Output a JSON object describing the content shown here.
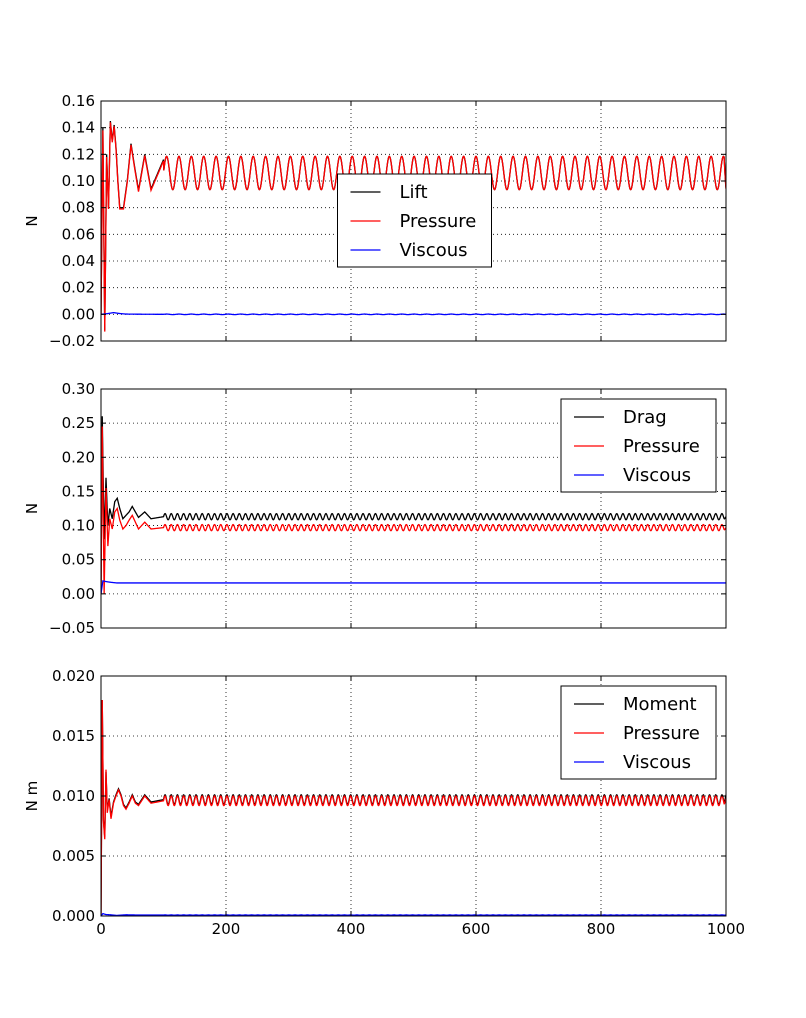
{
  "chart_data": [
    {
      "type": "line",
      "id": "lift",
      "title": "",
      "xlabel": "",
      "ylabel": "N",
      "xlim": [
        0,
        1000
      ],
      "ylim": [
        -0.02,
        0.16
      ],
      "xticks": [
        0,
        200,
        400,
        600,
        800,
        1000
      ],
      "yticks": [
        "−0.02",
        "0.00",
        "0.02",
        "0.04",
        "0.06",
        "0.08",
        "0.10",
        "0.12",
        "0.14",
        "0.16"
      ],
      "ytick_values": [
        -0.02,
        0.0,
        0.02,
        0.04,
        0.06,
        0.08,
        0.1,
        0.12,
        0.14,
        0.16
      ],
      "show_xtick_labels": false,
      "grid": true,
      "legend_position": "center",
      "legend_offset_from_top": 0.42,
      "series": [
        {
          "name": "Lift",
          "color": "#000000",
          "x": [
            0,
            3,
            6,
            9,
            12,
            15,
            18,
            21,
            24,
            27,
            30,
            36,
            42,
            48,
            54,
            60,
            70,
            80,
            100,
            150,
            200,
            300,
            400,
            500,
            600,
            700,
            800,
            900,
            1000
          ],
          "y": [
            0.0,
            0.14,
            -0.012,
            0.12,
            0.08,
            0.145,
            0.13,
            0.142,
            0.125,
            0.1,
            0.08,
            0.08,
            0.1,
            0.128,
            0.11,
            0.093,
            0.12,
            0.094,
            0.116,
            0.106,
            0.106,
            0.107,
            0.107,
            0.107,
            0.107,
            0.107,
            0.107,
            0.107,
            0.095
          ],
          "steady_mean": 0.106,
          "steady_amplitude": 0.0125,
          "period": 19.8
        },
        {
          "name": "Pressure",
          "color": "#ff0000",
          "x": [
            0,
            3,
            6,
            9,
            12,
            15,
            18,
            21,
            24,
            27,
            30,
            36,
            42,
            48,
            54,
            60,
            70,
            80,
            100,
            150,
            200,
            300,
            400,
            500,
            600,
            700,
            800,
            900,
            1000
          ],
          "y": [
            0.0,
            0.138,
            -0.013,
            0.118,
            0.079,
            0.144,
            0.129,
            0.141,
            0.124,
            0.099,
            0.079,
            0.079,
            0.099,
            0.127,
            0.109,
            0.092,
            0.119,
            0.093,
            0.115,
            0.105,
            0.105,
            0.106,
            0.106,
            0.106,
            0.106,
            0.106,
            0.106,
            0.106,
            0.094
          ],
          "steady_mean": 0.106,
          "steady_amplitude": 0.0125,
          "period": 19.8
        },
        {
          "name": "Viscous",
          "color": "#0000ff",
          "x": [
            0,
            10,
            20,
            30,
            40,
            60,
            100,
            200,
            400,
            600,
            800,
            1000
          ],
          "y": [
            0.0,
            0.0005,
            0.0013,
            0.0006,
            0.0002,
            0.0001,
            0.0,
            0.0,
            0.0,
            0.0,
            0.0,
            0.0
          ],
          "steady_mean": 0.0,
          "steady_amplitude": 0.0002,
          "period": 19.8
        }
      ]
    },
    {
      "type": "line",
      "id": "drag",
      "title": "",
      "xlabel": "",
      "ylabel": "N",
      "xlim": [
        0,
        1000
      ],
      "ylim": [
        -0.05,
        0.3
      ],
      "xticks": [
        0,
        200,
        400,
        600,
        800,
        1000
      ],
      "yticks": [
        "−0.05",
        "0.00",
        "0.05",
        "0.10",
        "0.15",
        "0.20",
        "0.25",
        "0.30"
      ],
      "ytick_values": [
        -0.05,
        0.0,
        0.05,
        0.1,
        0.15,
        0.2,
        0.25,
        0.3
      ],
      "show_xtick_labels": false,
      "grid": true,
      "legend_position": "upper right",
      "series": [
        {
          "name": "Drag",
          "color": "#000000",
          "x": [
            0,
            2,
            5,
            8,
            11,
            14,
            18,
            22,
            26,
            30,
            35,
            40,
            45,
            50,
            60,
            70,
            80,
            100,
            200,
            400,
            600,
            800,
            1000
          ],
          "y": [
            0.0,
            0.26,
            0.08,
            0.17,
            0.1,
            0.125,
            0.11,
            0.135,
            0.14,
            0.125,
            0.11,
            0.115,
            0.12,
            0.128,
            0.112,
            0.12,
            0.11,
            0.113,
            0.113,
            0.113,
            0.113,
            0.113,
            0.113
          ],
          "steady_mean": 0.113,
          "steady_amplitude": 0.0045,
          "period": 9.9
        },
        {
          "name": "Pressure",
          "color": "#ff0000",
          "x": [
            0,
            2,
            5,
            8,
            11,
            14,
            18,
            22,
            26,
            30,
            35,
            40,
            45,
            50,
            60,
            70,
            80,
            100,
            200,
            400,
            600,
            800,
            1000
          ],
          "y": [
            0.0,
            0.245,
            0.0,
            0.155,
            0.07,
            0.11,
            0.095,
            0.12,
            0.125,
            0.108,
            0.095,
            0.1,
            0.108,
            0.115,
            0.095,
            0.105,
            0.095,
            0.097,
            0.097,
            0.097,
            0.097,
            0.097,
            0.097
          ],
          "steady_mean": 0.097,
          "steady_amplitude": 0.0045,
          "period": 9.9
        },
        {
          "name": "Viscous",
          "color": "#0000ff",
          "x": [
            0,
            3,
            8,
            15,
            25,
            40,
            60,
            100,
            200,
            400,
            600,
            800,
            1000
          ],
          "y": [
            0.0,
            0.019,
            0.018,
            0.017,
            0.016,
            0.016,
            0.016,
            0.016,
            0.016,
            0.016,
            0.016,
            0.016,
            0.016
          ],
          "steady_mean": 0.016,
          "steady_amplitude": 0.0,
          "period": 9.9
        }
      ]
    },
    {
      "type": "line",
      "id": "moment",
      "title": "",
      "xlabel": "",
      "ylabel": "N m",
      "xlim": [
        0,
        1000
      ],
      "ylim": [
        0.0,
        0.02
      ],
      "xticks": [
        0,
        200,
        400,
        600,
        800,
        1000
      ],
      "xtick_labels": [
        "0",
        "200",
        "400",
        "600",
        "800",
        "1000"
      ],
      "yticks": [
        "0.000",
        "0.005",
        "0.010",
        "0.015",
        "0.020"
      ],
      "ytick_values": [
        0.0,
        0.005,
        0.01,
        0.015,
        0.02
      ],
      "show_xtick_labels": true,
      "grid": true,
      "legend_position": "upper right",
      "series": [
        {
          "name": "Moment",
          "color": "#000000",
          "x": [
            0,
            2,
            4,
            6,
            8,
            10,
            13,
            16,
            20,
            24,
            28,
            32,
            36,
            40,
            45,
            50,
            55,
            60,
            70,
            80,
            100,
            200,
            400,
            600,
            800,
            1000
          ],
          "y": [
            0.0,
            0.018,
            0.008,
            0.0066,
            0.012,
            0.0088,
            0.0098,
            0.0083,
            0.0095,
            0.0101,
            0.0106,
            0.0101,
            0.0093,
            0.009,
            0.0095,
            0.0101,
            0.0095,
            0.0093,
            0.0101,
            0.0095,
            0.0097,
            0.0097,
            0.0097,
            0.0097,
            0.0097,
            0.0101
          ],
          "steady_mean": 0.0097,
          "steady_amplitude": 0.0004,
          "period": 9.9
        },
        {
          "name": "Pressure",
          "color": "#ff0000",
          "x": [
            0,
            2,
            4,
            6,
            8,
            10,
            13,
            16,
            20,
            24,
            28,
            32,
            36,
            40,
            45,
            50,
            55,
            60,
            70,
            80,
            100,
            200,
            400,
            600,
            800,
            1000
          ],
          "y": [
            0.0,
            0.018,
            0.0078,
            0.0064,
            0.0122,
            0.0086,
            0.0097,
            0.0081,
            0.0094,
            0.01,
            0.0105,
            0.01,
            0.0092,
            0.0089,
            0.0094,
            0.01,
            0.0094,
            0.0092,
            0.01,
            0.0094,
            0.0096,
            0.0096,
            0.0096,
            0.0096,
            0.0096,
            0.0098
          ],
          "steady_mean": 0.0096,
          "steady_amplitude": 0.0004,
          "period": 9.9
        },
        {
          "name": "Viscous",
          "color": "#0000ff",
          "x": [
            0,
            3,
            8,
            15,
            25,
            40,
            60,
            100,
            200,
            400,
            600,
            800,
            1000
          ],
          "y": [
            0.0,
            0.0002,
            0.00012,
            0.0001,
            5e-05,
            0.0001,
            8e-05,
            8e-05,
            8e-05,
            8e-05,
            8e-05,
            8e-05,
            8e-05
          ],
          "steady_mean": 8e-05,
          "steady_amplitude": 1e-05,
          "period": 9.9
        }
      ]
    }
  ]
}
